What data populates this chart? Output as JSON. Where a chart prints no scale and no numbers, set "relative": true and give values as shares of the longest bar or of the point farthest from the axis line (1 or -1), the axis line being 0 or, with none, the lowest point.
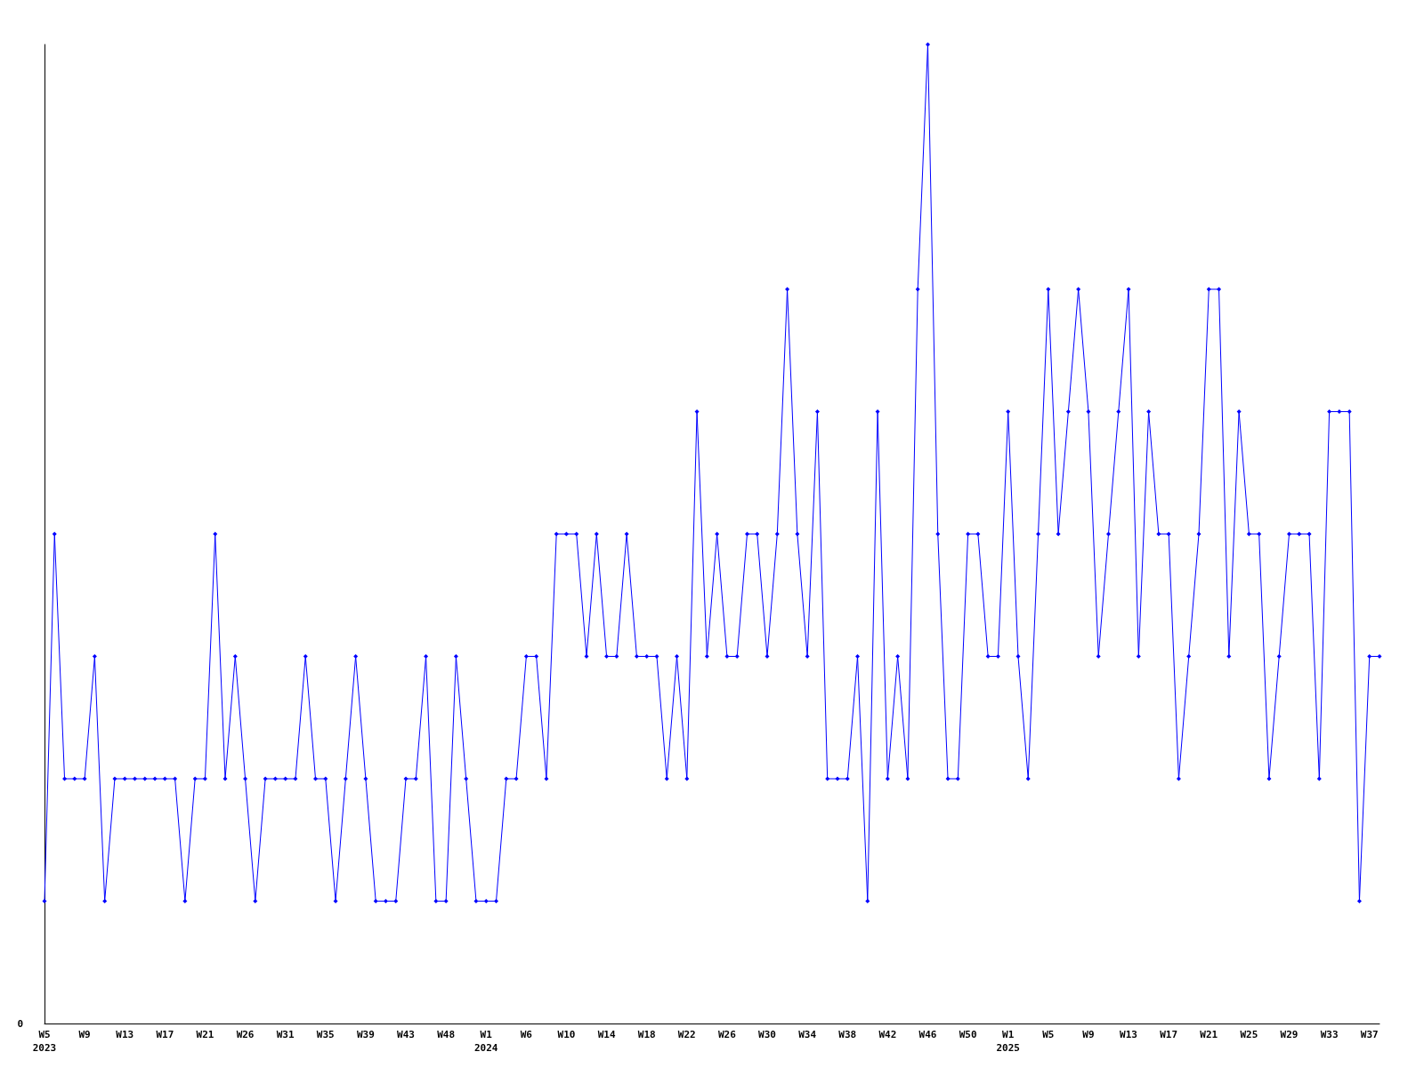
{
  "chart_data": {
    "type": "line",
    "relative": true,
    "color": "#0000ff",
    "marker": "diamond",
    "line_style": "solid",
    "grid": false,
    "annotations": [
      "0"
    ],
    "categories": [
      "W5\n2023",
      null,
      null,
      null,
      "W9",
      null,
      null,
      null,
      "W13",
      null,
      null,
      null,
      "W17",
      null,
      null,
      null,
      "W21",
      null,
      null,
      null,
      "W26",
      null,
      null,
      null,
      "W31",
      null,
      null,
      null,
      "W35",
      null,
      null,
      null,
      "W39",
      null,
      null,
      null,
      "W43",
      null,
      null,
      null,
      "W48",
      null,
      null,
      null,
      "W1\n2024",
      null,
      null,
      null,
      "W6",
      null,
      null,
      null,
      "W10",
      null,
      null,
      null,
      "W14",
      null,
      null,
      null,
      "W18",
      null,
      null,
      null,
      "W22",
      null,
      null,
      null,
      "W26",
      null,
      null,
      null,
      "W30",
      null,
      null,
      null,
      "W34",
      null,
      null,
      null,
      "W38",
      null,
      null,
      null,
      "W42",
      null,
      null,
      null,
      "W46",
      null,
      null,
      null,
      "W50",
      null,
      null,
      null,
      "W1\n2025",
      null,
      null,
      null,
      "W5",
      null,
      null,
      null,
      "W9",
      null,
      null,
      null,
      "W13",
      null,
      null,
      null,
      "W17",
      null,
      null,
      null,
      "W21",
      null,
      null,
      null,
      "W25",
      null,
      null,
      null,
      "W29",
      null,
      null,
      null,
      "W33",
      null,
      null,
      null,
      "W37",
      null
    ],
    "values": [
      0.125,
      0.5,
      0.25,
      0.25,
      0.25,
      0.375,
      0.125,
      0.25,
      0.25,
      0.25,
      0.25,
      0.25,
      0.25,
      0.25,
      0.125,
      0.25,
      0.25,
      0.5,
      0.25,
      0.375,
      0.25,
      0.125,
      0.25,
      0.25,
      0.25,
      0.25,
      0.375,
      0.25,
      0.25,
      0.125,
      0.25,
      0.375,
      0.25,
      0.125,
      0.125,
      0.125,
      0.25,
      0.25,
      0.375,
      0.125,
      0.125,
      0.375,
      0.25,
      0.125,
      0.125,
      0.125,
      0.25,
      0.25,
      0.375,
      0.375,
      0.25,
      0.5,
      0.5,
      0.5,
      0.375,
      0.5,
      0.375,
      0.375,
      0.5,
      0.375,
      0.375,
      0.375,
      0.25,
      0.375,
      0.25,
      0.625,
      0.375,
      0.5,
      0.375,
      0.375,
      0.5,
      0.5,
      0.375,
      0.5,
      0.75,
      0.5,
      0.375,
      0.625,
      0.25,
      0.25,
      0.25,
      0.375,
      0.125,
      0.625,
      0.25,
      0.375,
      0.25,
      0.75,
      1,
      0.5,
      0.25,
      0.25,
      0.5,
      0.5,
      0.375,
      0.375,
      0.625,
      0.375,
      0.25,
      0.5,
      0.75,
      0.5,
      0.625,
      0.75,
      0.625,
      0.375,
      0.5,
      0.625,
      0.75,
      0.375,
      0.625,
      0.5,
      0.5,
      0.25,
      0.375,
      0.5,
      0.75,
      0.75,
      0.375,
      0.625,
      0.5,
      0.5,
      0.25,
      0.375,
      0.5,
      0.5,
      0.5,
      0.25,
      0.625,
      0.625,
      0.625,
      0.125,
      0.375,
      0.375
    ]
  }
}
